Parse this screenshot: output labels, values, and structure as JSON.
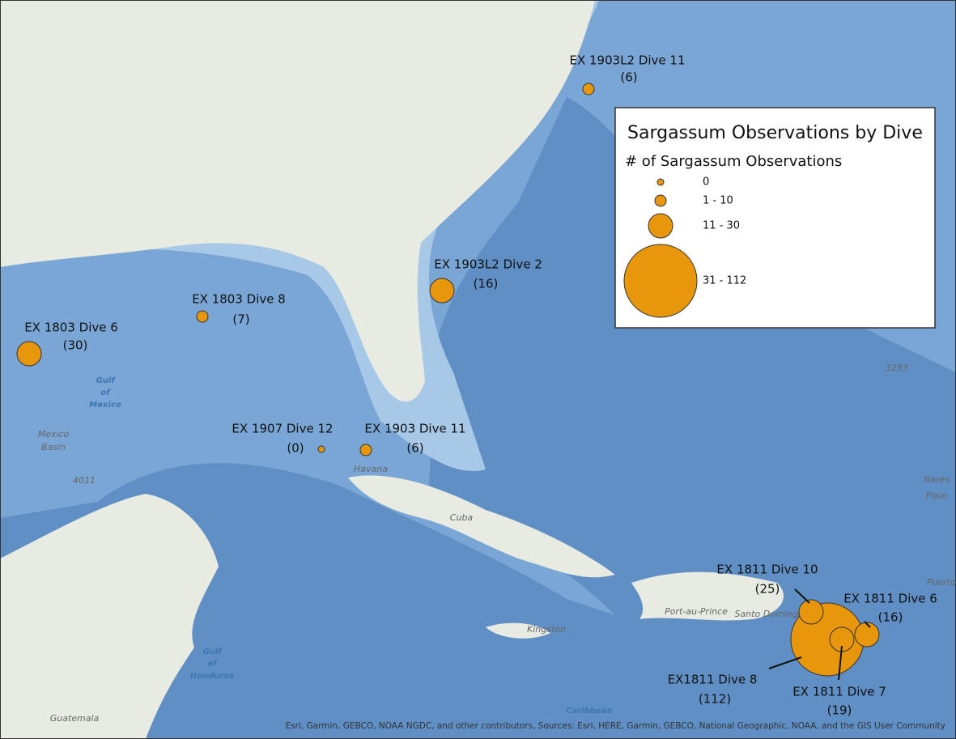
{
  "legend": {
    "title": "Sargassum Observations by Dive",
    "subtitle": "# of Sargassum Observations",
    "classes": [
      {
        "label": "0",
        "max": 0
      },
      {
        "label": "1 - 10",
        "max": 10
      },
      {
        "label": "11 - 30",
        "max": 30
      },
      {
        "label": "31 - 112",
        "max": 112
      }
    ]
  },
  "dives": [
    {
      "name": "EX 1903L2 Dive 11",
      "count": 6,
      "count_label": "(6)"
    },
    {
      "name": "EX 1903L2 Dive 2",
      "count": 16,
      "count_label": "(16)"
    },
    {
      "name": "EX 1803 Dive 8",
      "count": 7,
      "count_label": "(7)"
    },
    {
      "name": "EX 1803 Dive 6",
      "count": 30,
      "count_label": "(30)"
    },
    {
      "name": "EX 1907 Dive 12",
      "count": 0,
      "count_label": "(0)"
    },
    {
      "name": "EX 1903 Dive 11",
      "count": 6,
      "count_label": "(6)"
    },
    {
      "name": "EX1811 Dive 8",
      "count": 112,
      "count_label": "(112)"
    },
    {
      "name": "EX 1811 Dive 10",
      "count": 25,
      "count_label": "(25)"
    },
    {
      "name": "EX 1811 Dive 7",
      "count": 19,
      "count_label": "(19)"
    },
    {
      "name": "EX 1811 Dive 6",
      "count": 16,
      "count_label": "(16)"
    }
  ],
  "places": [
    "Gulf",
    "of",
    "Mexico",
    "Mexico",
    "Basin",
    "4011",
    "Havana",
    "Cuba",
    "Port-au-Prince",
    "Santo Domingo",
    "Kingston",
    "Gulf",
    "of",
    "Honduras",
    "Guatemala",
    "Caribbean",
    "3293",
    "Nares",
    "Plain",
    "Puerto"
  ],
  "attribution": "Esri, Garmin, GEBCO, NOAA NGDC, and other contributors, Sources: Esri, HERE, Garmin, GEBCO, National Geographic, NOAA, and the GIS User Community"
}
